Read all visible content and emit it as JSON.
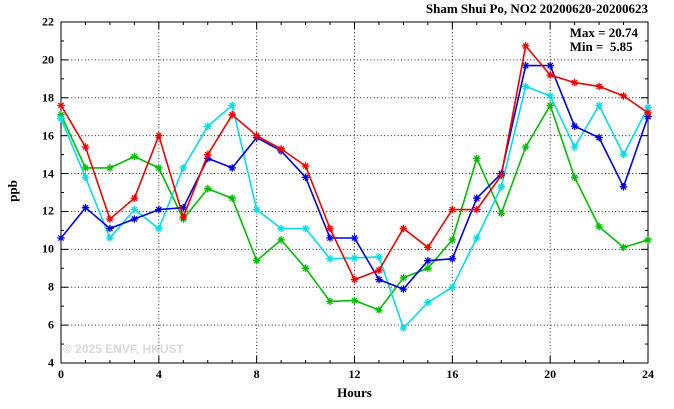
{
  "header": {
    "title": "Sham Shui Po, NO2 20200620-20200623"
  },
  "annotation": {
    "max_label": "Max = 20.74",
    "min_label": "Min =  5.85"
  },
  "watermark": "© 2025 ENVF, HKUST",
  "axes": {
    "x_title": "Hours",
    "y_title": "ppb"
  },
  "chart_data": {
    "type": "line",
    "title": "Sham Shui Po, NO2 20200620-20200623",
    "xlabel": "Hours",
    "ylabel": "ppb",
    "xlim": [
      0,
      24
    ],
    "ylim": [
      4,
      22
    ],
    "x_major_ticks": [
      0,
      4,
      8,
      12,
      16,
      20,
      24
    ],
    "y_major_ticks": [
      4,
      6,
      8,
      10,
      12,
      14,
      16,
      18,
      20,
      22
    ],
    "grid": true,
    "legend_position": "none",
    "max_value": 20.74,
    "min_value": 5.85,
    "x": [
      0,
      1,
      2,
      3,
      4,
      5,
      6,
      7,
      8,
      9,
      10,
      11,
      12,
      13,
      14,
      15,
      16,
      17,
      18,
      19,
      20,
      21,
      22,
      23,
      24
    ],
    "series": [
      {
        "name": "series-green",
        "color": "#00bd00",
        "values": [
          17.1,
          14.3,
          14.3,
          14.9,
          14.3,
          11.6,
          13.2,
          12.7,
          9.4,
          10.5,
          9.0,
          7.25,
          7.3,
          6.8,
          8.5,
          9.0,
          10.5,
          14.8,
          11.9,
          15.4,
          17.6,
          13.8,
          11.2,
          10.1,
          10.5
        ]
      },
      {
        "name": "series-cyan",
        "color": "#00dde4",
        "values": [
          16.9,
          13.8,
          10.6,
          12.1,
          11.1,
          14.3,
          16.5,
          17.6,
          12.1,
          11.1,
          11.1,
          9.5,
          9.55,
          9.6,
          5.85,
          7.2,
          8.0,
          10.6,
          13.3,
          18.6,
          18.1,
          15.4,
          17.6,
          15.0,
          17.5
        ]
      },
      {
        "name": "series-blue",
        "color": "#0000dd",
        "values": [
          10.6,
          12.2,
          11.1,
          11.6,
          12.1,
          12.2,
          14.8,
          14.3,
          15.9,
          15.2,
          13.8,
          10.6,
          10.6,
          8.4,
          7.9,
          9.4,
          9.5,
          12.7,
          14.0,
          19.7,
          19.7,
          16.5,
          15.9,
          13.3,
          17.0
        ]
      },
      {
        "name": "series-red",
        "color": "#ee0000",
        "values": [
          17.6,
          15.4,
          11.6,
          12.7,
          16.0,
          11.7,
          15.0,
          17.1,
          16.0,
          15.3,
          14.4,
          11.1,
          8.4,
          8.9,
          11.1,
          10.1,
          12.1,
          12.1,
          13.9,
          20.74,
          19.2,
          18.8,
          18.6,
          18.1,
          17.2
        ]
      }
    ]
  }
}
